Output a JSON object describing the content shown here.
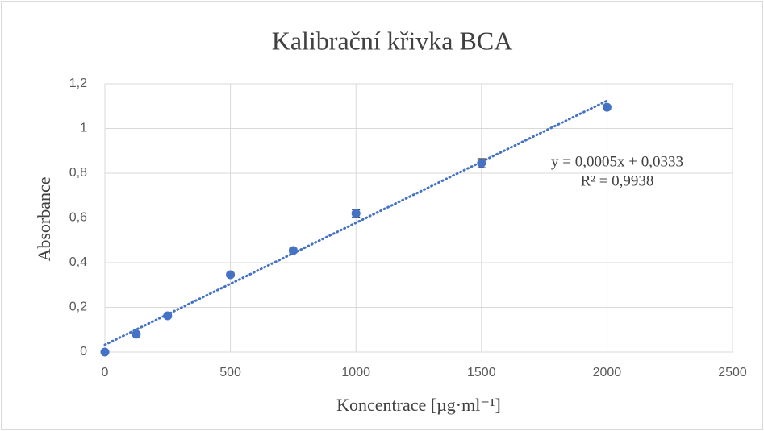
{
  "chart_data": {
    "type": "scatter",
    "title": "Kalibrační křivka BCA",
    "xlabel": "Koncentrace [µg·ml⁻¹]",
    "ylabel": "Absorbance",
    "series": [
      {
        "color": "#4472c4",
        "x": [
          0,
          125,
          250,
          500,
          750,
          1000,
          1500,
          2000
        ],
        "values": [
          0,
          0.08,
          0.162,
          0.346,
          0.454,
          0.62,
          0.845,
          1.095
        ],
        "errors": [
          0.005,
          0.006,
          0.007,
          0.008,
          0.01,
          0.016,
          0.02,
          0.008
        ]
      }
    ],
    "trendline": {
      "equation": "y = 0,0005x + 0,0333",
      "r2": "R² = 0,9938"
    },
    "xlim": [
      0,
      2500
    ],
    "xticks": [
      0,
      500,
      1000,
      1500,
      2000,
      2500
    ],
    "ylim": [
      0,
      1.2
    ],
    "yticks": [
      0,
      {
        "value": 0.2,
        "label": "0,2"
      },
      {
        "value": 0.4,
        "label": "0,4"
      },
      {
        "value": 0.6,
        "label": "0,6"
      },
      {
        "value": 0.8,
        "label": "0,8"
      },
      1,
      {
        "value": 1.2,
        "label": "1,2"
      }
    ],
    "grid": true
  }
}
